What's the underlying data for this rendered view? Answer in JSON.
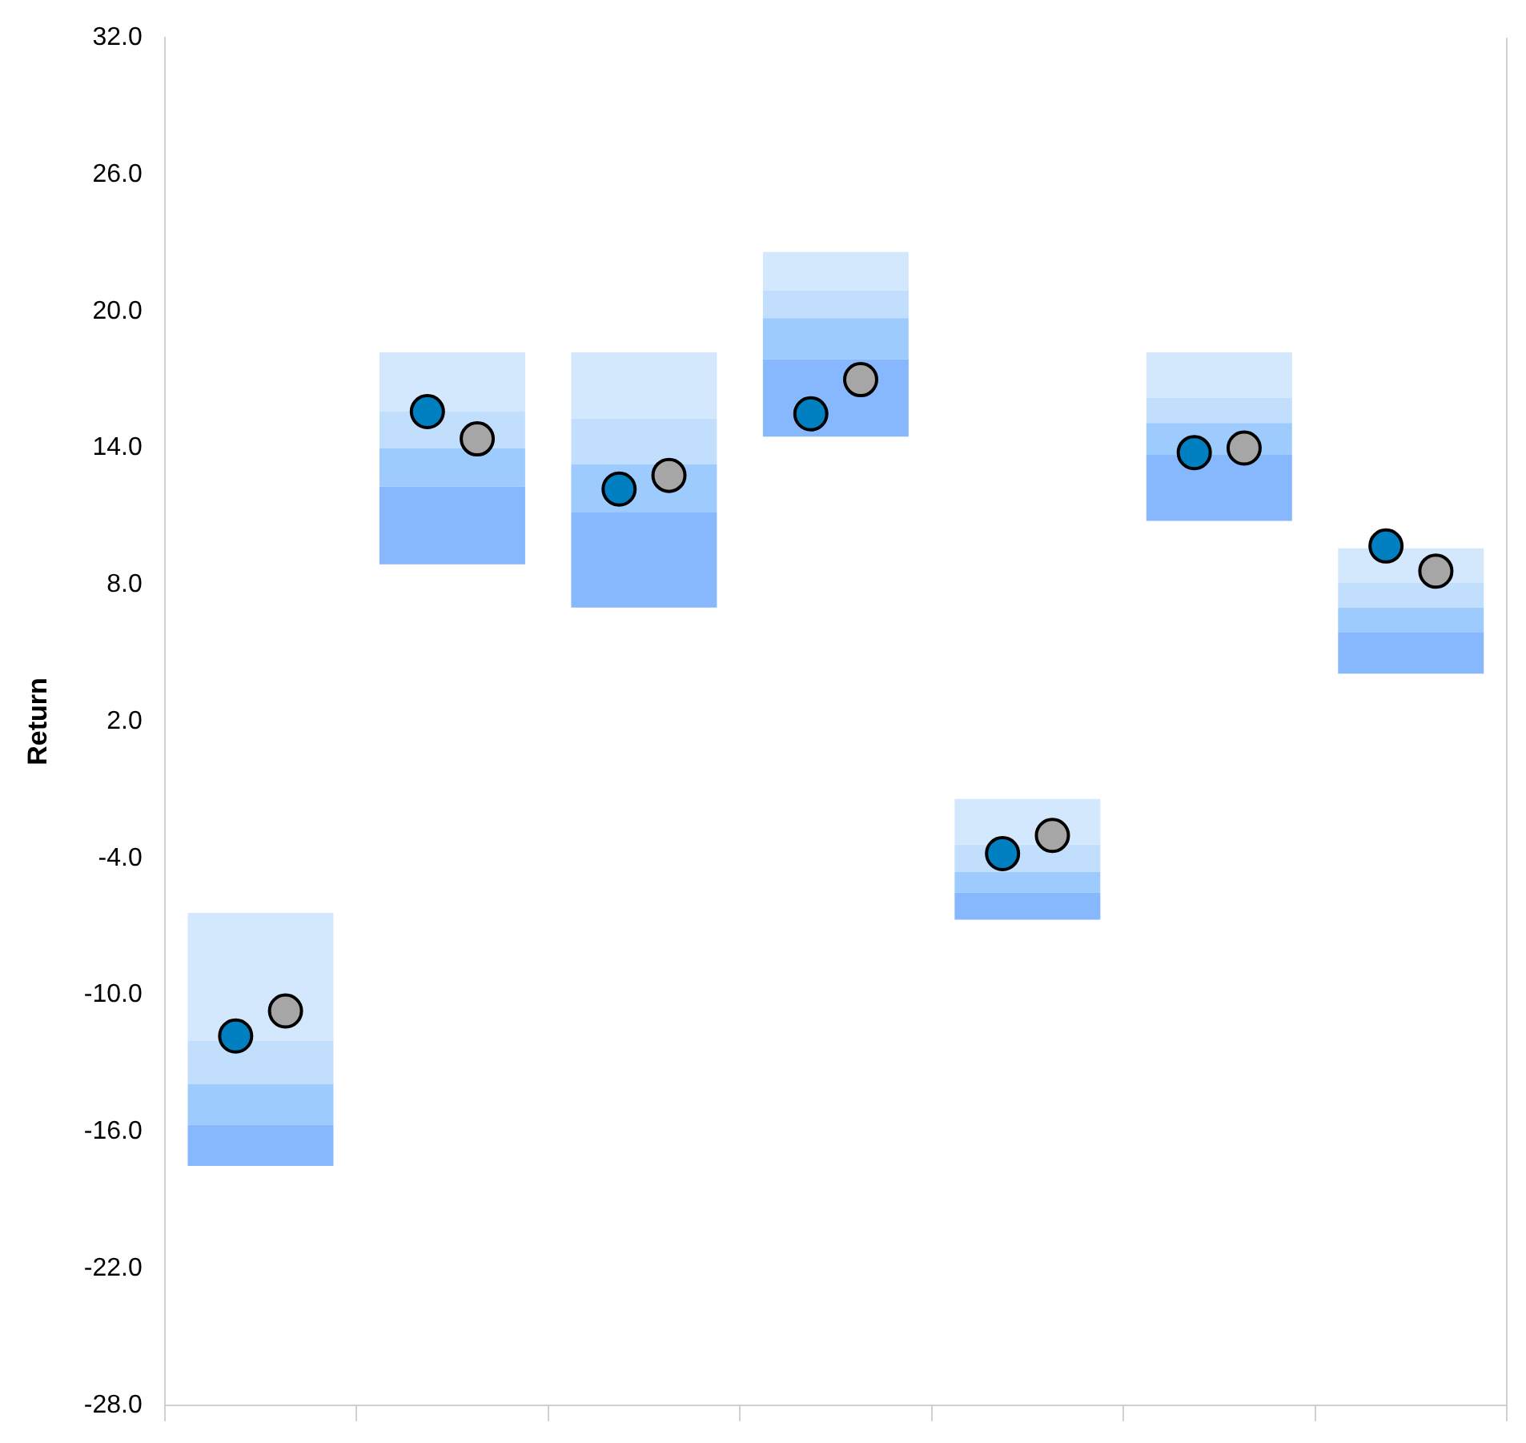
{
  "chart_data": {
    "type": "bar",
    "ylabel": "Return",
    "categories": [
      null,
      null,
      null,
      null,
      null,
      null,
      null
    ],
    "stacked": true,
    "series": [
      {
        "color": "#87b8fd",
        "base": [
          -17.5,
          8.9,
          7.0,
          14.5,
          -6.7,
          10.8,
          4.1
        ],
        "values": [
          1.8,
          3.4,
          4.2,
          3.4,
          1.2,
          2.9,
          1.8
        ]
      },
      {
        "color": "#9dcbfd",
        "values": [
          1.8,
          1.7,
          2.1,
          1.8,
          0.9,
          1.4,
          1.1
        ]
      },
      {
        "color": "#c1dffd",
        "values": [
          1.9,
          1.6,
          2.0,
          1.2,
          1.2,
          1.1,
          1.1
        ]
      },
      {
        "color": "#d4e8fd",
        "values": [
          5.6,
          2.6,
          2.9,
          1.7,
          2.0,
          2.0,
          1.5
        ]
      },
      {
        "type": "scatter",
        "color": "#0080c0",
        "values": [
          -11.8,
          15.6,
          12.2,
          15.5,
          -3.8,
          13.8,
          9.7
        ]
      },
      {
        "type": "scatter",
        "color": "#a6a6a6",
        "values": [
          -10.7,
          14.4,
          12.8,
          17.0,
          -3.0,
          14.0,
          8.6
        ]
      }
    ],
    "ylim": [
      -28,
      32
    ],
    "yticks": [
      {
        "value": -28,
        "label": "-28.0"
      },
      {
        "value": -22,
        "label": "-22.0"
      },
      {
        "value": -16,
        "label": "-16.0"
      },
      {
        "value": -10,
        "label": "-10.0"
      },
      {
        "value": -4,
        "label": "-4.0"
      },
      {
        "value": 2,
        "label": "2.0"
      },
      {
        "value": 8,
        "label": "8.0"
      },
      {
        "value": 14,
        "label": "14.0"
      },
      {
        "value": 20,
        "label": "20.0"
      },
      {
        "value": 26,
        "label": "26.0"
      },
      {
        "value": 32,
        "label": "32.0"
      }
    ],
    "grid": false,
    "legend": false,
    "tick_labels": "y",
    "marker": "circle"
  }
}
